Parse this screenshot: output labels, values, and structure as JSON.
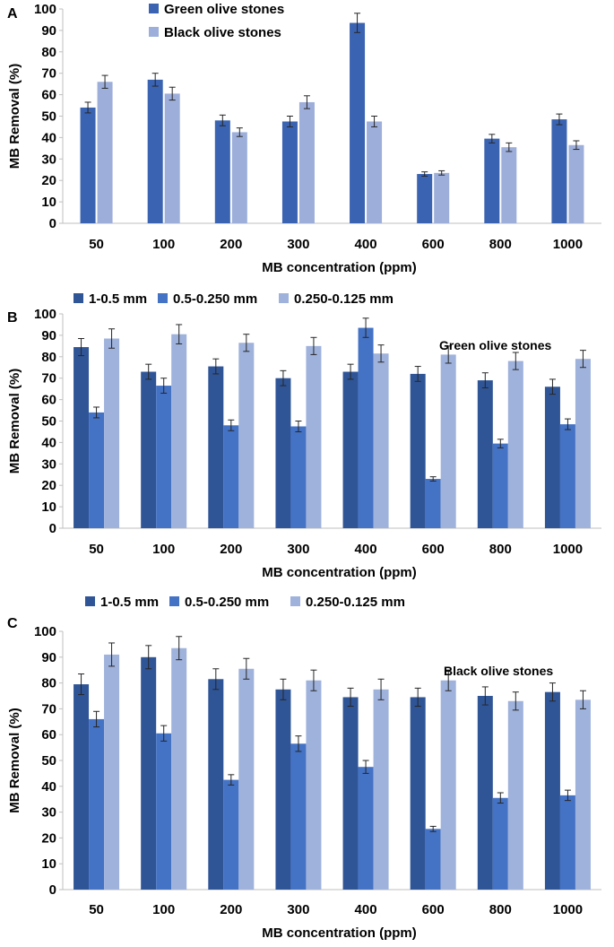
{
  "chart_data": [
    {
      "type": "bar",
      "panel_label": "A",
      "title": "",
      "xlabel": "MB concentration (ppm)",
      "ylabel": "MB Removal (%)",
      "ylim": [
        0,
        100
      ],
      "yticks": [
        "0",
        "10",
        "20",
        "30",
        "40",
        "50",
        "60",
        "70",
        "80",
        "90",
        "100"
      ],
      "categories": [
        "50",
        "100",
        "200",
        "300",
        "400",
        "600",
        "800",
        "1000"
      ],
      "legend_position": "top-left",
      "annotation": "",
      "series": [
        {
          "name": "Green olive stones",
          "color": "#3a63b1",
          "values": [
            54,
            67,
            48,
            47.5,
            93.5,
            23,
            39.5,
            48.5
          ],
          "errors": [
            2.5,
            3,
            2.5,
            2.5,
            4.5,
            1,
            2,
            2.5
          ]
        },
        {
          "name": "Black olive stones",
          "color": "#9caed9",
          "values": [
            66,
            60.5,
            42.5,
            56.5,
            47.5,
            23.5,
            35.5,
            36.5
          ],
          "errors": [
            3,
            3,
            2,
            3,
            2.5,
            1,
            2,
            2
          ]
        }
      ]
    },
    {
      "type": "bar",
      "panel_label": "B",
      "title": "",
      "xlabel": "MB concentration (ppm)",
      "ylabel": "MB Removal (%)",
      "ylim": [
        0,
        100
      ],
      "yticks": [
        "0",
        "10",
        "20",
        "30",
        "40",
        "50",
        "60",
        "70",
        "80",
        "90",
        "100"
      ],
      "categories": [
        "50",
        "100",
        "200",
        "300",
        "400",
        "600",
        "800",
        "1000"
      ],
      "legend_position": "top",
      "annotation": "Green olive stones",
      "series": [
        {
          "name": "1-0.5 mm",
          "color": "#2f5597",
          "values": [
            84.5,
            73,
            75.5,
            70,
            73,
            72,
            69,
            66
          ],
          "errors": [
            4,
            3.5,
            3.5,
            3.5,
            3.5,
            3.5,
            3.5,
            3.5
          ]
        },
        {
          "name": "0.5-0.250 mm",
          "color": "#4472c4",
          "values": [
            54,
            66.5,
            48,
            47.5,
            93.5,
            23,
            39.5,
            48.5
          ],
          "errors": [
            2.5,
            3.5,
            2.5,
            2.5,
            4.5,
            1,
            2,
            2.5
          ]
        },
        {
          "name": "0.250-0.125 mm",
          "color": "#9fb2dc",
          "values": [
            88.5,
            90.5,
            86.5,
            85,
            81.5,
            81,
            78,
            79
          ],
          "errors": [
            4.5,
            4.5,
            4,
            4,
            4,
            4,
            4,
            4
          ]
        }
      ]
    },
    {
      "type": "bar",
      "panel_label": "C",
      "title": "",
      "xlabel": "MB concentration (ppm)",
      "ylabel": "MB Removal (%)",
      "ylim": [
        0,
        100
      ],
      "yticks": [
        "0",
        "10",
        "20",
        "30",
        "40",
        "50",
        "60",
        "70",
        "80",
        "90",
        "100"
      ],
      "categories": [
        "50",
        "100",
        "200",
        "300",
        "400",
        "600",
        "800",
        "1000"
      ],
      "legend_position": "top",
      "annotation": "Black olive stones",
      "series": [
        {
          "name": "1-0.5 mm",
          "color": "#2f5597",
          "values": [
            79.5,
            90,
            81.5,
            77.5,
            74.5,
            74.5,
            75,
            76.5
          ],
          "errors": [
            4,
            4.5,
            4,
            4,
            3.5,
            3.5,
            3.5,
            3.5
          ]
        },
        {
          "name": "0.5-0.250 mm",
          "color": "#4472c4",
          "values": [
            66,
            60.5,
            42.5,
            56.5,
            47.5,
            23.5,
            35.5,
            36.5
          ],
          "errors": [
            3,
            3,
            2,
            3,
            2.5,
            1,
            2,
            2
          ]
        },
        {
          "name": "0.250-0.125 mm",
          "color": "#9fb2dc",
          "values": [
            91,
            93.5,
            85.5,
            81,
            77.5,
            81,
            73,
            73.5
          ],
          "errors": [
            4.5,
            4.5,
            4,
            4,
            4,
            4,
            3.5,
            3.5
          ]
        }
      ]
    }
  ]
}
